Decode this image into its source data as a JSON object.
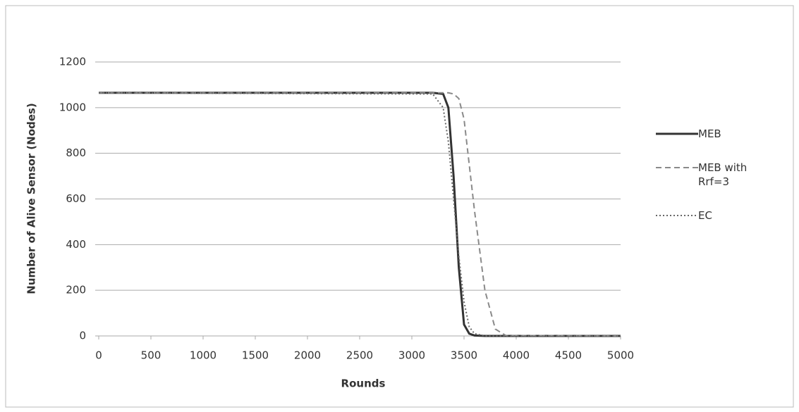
{
  "chart_data": {
    "type": "line",
    "x_label": "Rounds",
    "y_label": "Number of Alive Sensor (Nodes)",
    "x": [
      0,
      3200,
      3300,
      3350,
      3400,
      3450,
      3500,
      3550,
      3600,
      3700,
      3800,
      3900,
      5000
    ],
    "series": [
      {
        "name": "MEB",
        "color": "#333333",
        "dash": "solid",
        "values": [
          1065,
          1065,
          1060,
          1000,
          700,
          300,
          50,
          10,
          2,
          0,
          0,
          0,
          0
        ]
      },
      {
        "name": "MEB with Rrf=3",
        "color": "#8a8a8a",
        "dash": "dashed",
        "values": [
          1065,
          1065,
          1065,
          1065,
          1060,
          1040,
          950,
          750,
          550,
          200,
          30,
          2,
          0
        ]
      },
      {
        "name": "EC",
        "color": "#666666",
        "dash": "dotted",
        "values": [
          1065,
          1060,
          1000,
          850,
          600,
          350,
          150,
          40,
          10,
          0,
          0,
          0,
          0
        ]
      }
    ],
    "xlim": [
      0,
      5000
    ],
    "xticks": [
      0,
      500,
      1000,
      1500,
      2000,
      2500,
      3000,
      3500,
      4000,
      4500,
      5000
    ],
    "ylim": [
      0,
      1200
    ],
    "yticks": [
      0,
      200,
      400,
      600,
      800,
      1000,
      1200
    ],
    "grid": true,
    "legend": "right"
  }
}
